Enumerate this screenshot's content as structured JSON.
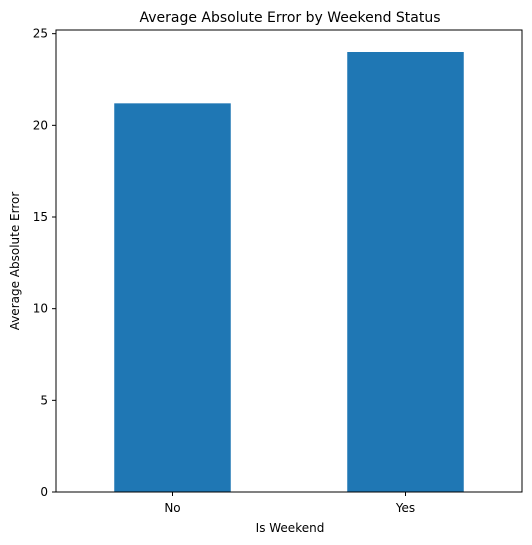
{
  "chart_data": {
    "type": "bar",
    "title": "Average Absolute Error by Weekend Status",
    "xlabel": "Is Weekend",
    "ylabel": "Average Absolute Error",
    "categories": [
      "No",
      "Yes"
    ],
    "values": [
      21.2,
      24.0
    ],
    "ylim": [
      0,
      25.2
    ],
    "yticks": [
      0,
      5,
      10,
      15,
      20,
      25
    ],
    "bar_color": "#1f77b4",
    "grid": false,
    "legend": false
  }
}
